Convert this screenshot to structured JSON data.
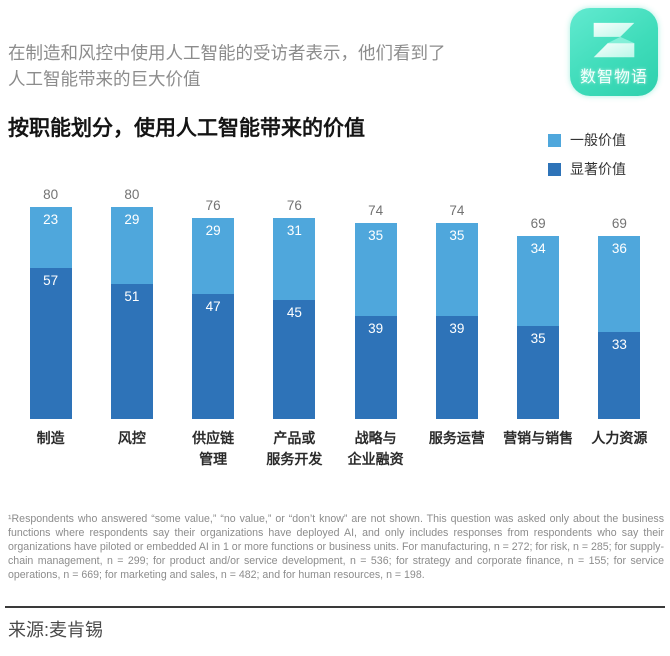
{
  "header": {
    "subtitle": "在制造和风控中使用人工智能的受访者表示，他们看到了\n人工智能带来的巨大价值",
    "logo_text": "数智物语",
    "logo_color_top": "#62ead0",
    "logo_color_bottom": "#2ed0ad"
  },
  "chart": {
    "title": "按职能划分，使用人工智能带来的价值",
    "legend": [
      {
        "label": "一般价值",
        "color": "#4fa7dc"
      },
      {
        "label": "显著价值",
        "color": "#2e73b8"
      }
    ]
  },
  "chart_data": {
    "type": "bar",
    "stacked": true,
    "title": "按职能划分，使用人工智能带来的价值",
    "categories": [
      "制造",
      "风控",
      "供应链\n管理",
      "产品或\n服务开发",
      "战略与\n企业融资",
      "服务运营",
      "营销与销售",
      "人力资源"
    ],
    "series": [
      {
        "name": "一般价值",
        "color": "#4fa7dc",
        "values": [
          23,
          29,
          29,
          31,
          35,
          35,
          34,
          36
        ]
      },
      {
        "name": "显著价值",
        "color": "#2e73b8",
        "values": [
          57,
          51,
          47,
          45,
          39,
          39,
          35,
          33
        ]
      }
    ],
    "totals": [
      80,
      80,
      76,
      76,
      74,
      74,
      69,
      69
    ],
    "ylim": [
      0,
      80
    ],
    "grid": false,
    "legend_position": "top-right",
    "value_labels": "inside-top-white",
    "total_labels": "above-gray"
  },
  "footnote": "¹Respondents who answered “some value,” “no value,” or “don’t know” are not shown. This question was asked only about the business functions where respondents say their organizations have deployed AI, and only includes responses from respondents who say their organizations have piloted or embedded AI in 1 or more functions or business units. For manufacturing, n = 272; for risk, n = 285; for supply-chain management, n = 299; for product and/or service development, n = 536; for strategy and corporate finance, n = 155; for service operations, n = 669; for marketing and sales, n = 482; and for human resources, n = 198.",
  "source": "来源:麦肯锡"
}
